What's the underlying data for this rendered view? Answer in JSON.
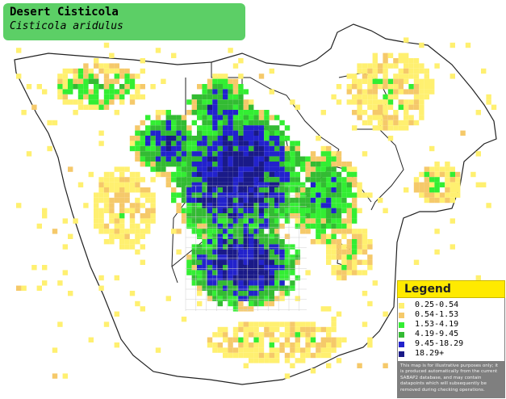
{
  "title": {
    "common_name": "Desert Cisticola",
    "scientific_name": "Cisticola aridulus"
  },
  "legend": {
    "header": "Legend",
    "items": [
      {
        "label": "0.25-0.54",
        "color": "#fff070"
      },
      {
        "label": "0.54-1.53",
        "color": "#f5c96a"
      },
      {
        "label": "1.53-4.19",
        "color": "#33ee33"
      },
      {
        "label": "4.19-9.45",
        "color": "#33bb33"
      },
      {
        "label": "9.45-18.29",
        "color": "#2222cc"
      },
      {
        "label": "18.29+",
        "color": "#1a1a88"
      }
    ],
    "note": "This map is for illustrative purposes only; it is produced automatically from the current SABAP2 database, and may contain datapoints which will subsequently be removed during checking operations."
  },
  "map": {
    "colors": {
      "land": "#ffffff",
      "border": "#222222",
      "grid": "#cfcfcf"
    }
  }
}
